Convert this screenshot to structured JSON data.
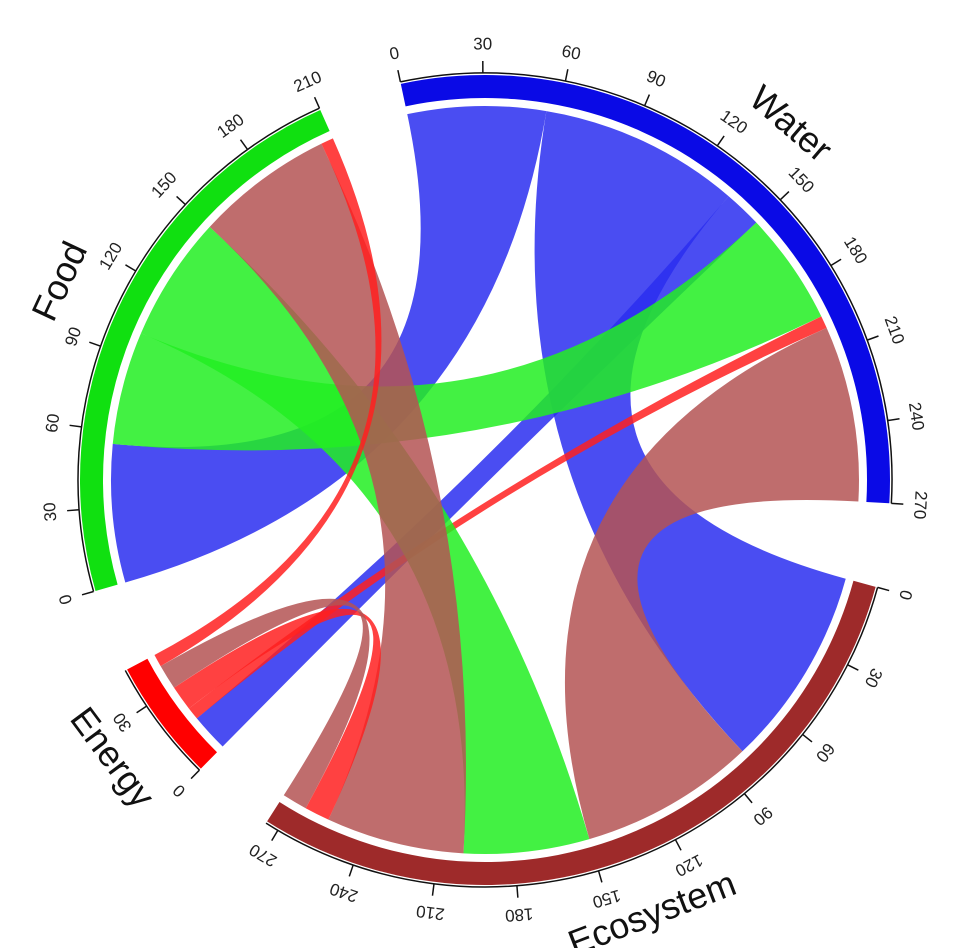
{
  "chart_data": {
    "type": "chord",
    "sectors": [
      {
        "name": "Water",
        "color": "#0a0ae6",
        "chord_color": "#2a2ef0",
        "ticks": [
          0,
          30,
          60,
          90,
          120,
          150,
          180,
          210,
          240,
          270
        ]
      },
      {
        "name": "Ecosystem",
        "color": "#9e2a2a",
        "chord_color": "#b45454",
        "ticks": [
          0,
          30,
          60,
          90,
          120,
          150,
          180,
          210,
          240,
          270
        ]
      },
      {
        "name": "Energy",
        "color": "#ff0000",
        "chord_color": "#ff2020",
        "ticks": [
          0,
          30
        ]
      },
      {
        "name": "Food",
        "color": "#10e010",
        "chord_color": "#22ee22",
        "ticks": [
          0,
          30,
          60,
          90,
          120,
          150,
          180,
          210
        ]
      }
    ],
    "chords": [
      {
        "from": "Water",
        "to": "Food",
        "value": 55
      },
      {
        "from": "Water",
        "to": "Ecosystem",
        "value": 80
      },
      {
        "from": "Water",
        "to": "Energy",
        "value": 15
      },
      {
        "from": "Food",
        "to": "Water",
        "value": 45
      },
      {
        "from": "Energy",
        "to": "Water",
        "value": 5
      },
      {
        "from": "Ecosystem",
        "to": "Water",
        "value": 70
      },
      {
        "from": "Food",
        "to": "Ecosystem",
        "value": 50
      },
      {
        "from": "Ecosystem",
        "to": "Food",
        "value": 55
      },
      {
        "from": "Energy",
        "to": "Ecosystem",
        "value": 10
      },
      {
        "from": "Ecosystem",
        "to": "Energy",
        "value": 10
      },
      {
        "from": "Energy",
        "to": "Food",
        "value": 5
      }
    ]
  }
}
